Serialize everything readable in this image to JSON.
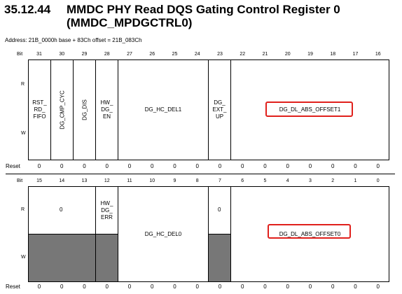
{
  "section": {
    "number": "35.12.44",
    "title_line1": "MMDC PHY Read DQS Gating Control Register 0",
    "title_line2": "(MMDC_MPDGCTRL0)"
  },
  "address": "Address: 21B_0000h base + 83Ch offset = 21B_083Ch",
  "labels": {
    "bit": "Bit",
    "r": "R",
    "w": "W",
    "reset": "Reset"
  },
  "upper": {
    "bits": [
      "31",
      "30",
      "29",
      "28",
      "27",
      "26",
      "25",
      "24",
      "23",
      "22",
      "21",
      "20",
      "19",
      "18",
      "17",
      "16"
    ],
    "fields": {
      "rst_rd_fifo": "RST_\nRD_\nFIFO",
      "dg_cmp_cyc": "DG_CMP_CYC",
      "dg_dis": "DG_DIS",
      "hw_dg_en": "HW_\nDG_\nEN",
      "dg_hc_del1": "DG_HC_DEL1",
      "dg_ext_up": "DG_\nEXT_\nUP",
      "dg_dl_abs_offset1": "DG_DL_ABS_OFFSET1"
    },
    "reset": [
      "0",
      "0",
      "0",
      "0",
      "0",
      "0",
      "0",
      "0",
      "0",
      "0",
      "0",
      "0",
      "0",
      "0",
      "0",
      "0"
    ]
  },
  "lower": {
    "bits": [
      "15",
      "14",
      "13",
      "12",
      "11",
      "10",
      "9",
      "8",
      "7",
      "6",
      "5",
      "4",
      "3",
      "2",
      "1",
      "0"
    ],
    "fields": {
      "reserved_15_13_value": "0",
      "hw_dg_err": "HW_\nDG_\nERR",
      "dg_hc_del0": "DG_HC_DEL0",
      "reserved_7_value": "0",
      "dg_dl_abs_offset0": "DG_DL_ABS_OFFSET0"
    },
    "reset": [
      "0",
      "0",
      "0",
      "0",
      "0",
      "0",
      "0",
      "0",
      "0",
      "0",
      "0",
      "0",
      "0",
      "0",
      "0",
      "0"
    ]
  },
  "colors": {
    "highlight": "#e0201c",
    "reserved_fill": "#777777"
  }
}
